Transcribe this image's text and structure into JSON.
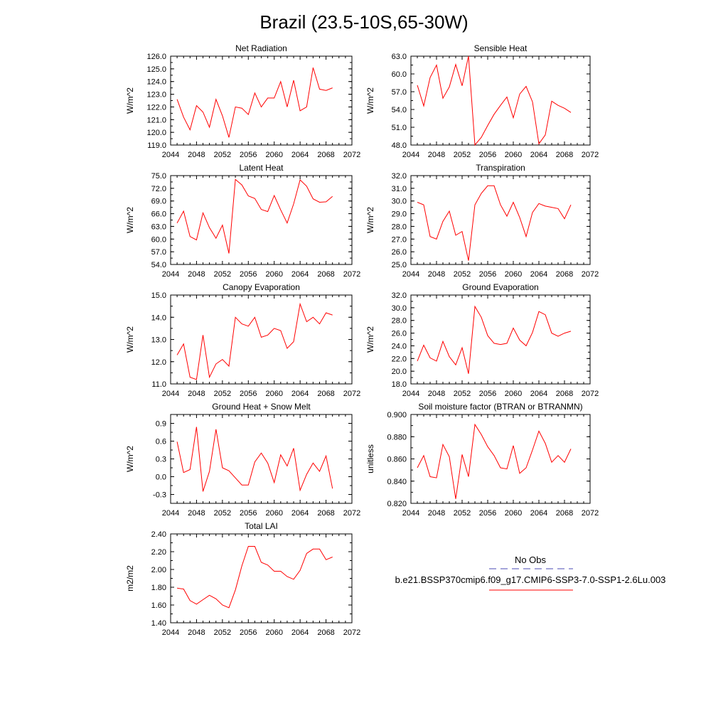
{
  "figure": {
    "title": "Brazil (23.5-10S,65-30W)",
    "line_color": "#ff0000",
    "obs_line_color": "#4b4bb4"
  },
  "legend": {
    "obs_label": "No Obs",
    "model_label": "b.e21.BSSP370cmip6.f09_g17.CMIP6-SSP3-7.0-SSP1-2.6Lu.003"
  },
  "chart_data": [
    {
      "type": "line",
      "title": "Net Radiation",
      "ylabel": "W/m^2",
      "xlim": [
        2044,
        2072
      ],
      "xticks": [
        "2044",
        "2048",
        "2052",
        "2056",
        "2060",
        "2064",
        "2068",
        "2072"
      ],
      "ylim": [
        119.0,
        126.0
      ],
      "yticks": [
        "119.0",
        "120.0",
        "121.0",
        "122.0",
        "123.0",
        "124.0",
        "125.0",
        "126.0"
      ],
      "x": [
        2045,
        2046,
        2047,
        2048,
        2049,
        2050,
        2051,
        2052,
        2053,
        2054,
        2055,
        2056,
        2057,
        2058,
        2059,
        2060,
        2061,
        2062,
        2063,
        2064,
        2065,
        2066,
        2067,
        2068,
        2069
      ],
      "series": [
        {
          "values": [
            122.6,
            121.2,
            120.2,
            122.1,
            121.6,
            120.4,
            122.6,
            121.3,
            119.6,
            122.0,
            121.9,
            121.4,
            123.1,
            122.0,
            122.7,
            122.7,
            124.0,
            122.0,
            124.1,
            121.7,
            122.0,
            125.1,
            123.4,
            123.3,
            123.5
          ]
        }
      ]
    },
    {
      "type": "line",
      "title": "Sensible Heat",
      "ylabel": "W/m^2",
      "xlim": [
        2044,
        2072
      ],
      "xticks": [
        "2044",
        "2048",
        "2052",
        "2056",
        "2060",
        "2064",
        "2068",
        "2072"
      ],
      "ylim": [
        48.0,
        63.0
      ],
      "yticks": [
        "48.0",
        "51.0",
        "54.0",
        "57.0",
        "60.0",
        "63.0"
      ],
      "x": [
        2045,
        2046,
        2047,
        2048,
        2049,
        2050,
        2051,
        2052,
        2053,
        2054,
        2055,
        2056,
        2057,
        2058,
        2059,
        2060,
        2061,
        2062,
        2063,
        2064,
        2065,
        2066,
        2067,
        2068,
        2069
      ],
      "series": [
        {
          "values": [
            58.1,
            54.6,
            59.4,
            61.5,
            55.9,
            57.8,
            61.6,
            58.0,
            63.0,
            48.0,
            49.3,
            51.3,
            53.2,
            54.7,
            56.1,
            52.6,
            56.6,
            57.9,
            55.3,
            48.2,
            49.7,
            55.4,
            54.7,
            54.2,
            53.5
          ]
        }
      ]
    },
    {
      "type": "line",
      "title": "Latent Heat",
      "ylabel": "W/m^2",
      "xlim": [
        2044,
        2072
      ],
      "xticks": [
        "2044",
        "2048",
        "2052",
        "2056",
        "2060",
        "2064",
        "2068",
        "2072"
      ],
      "ylim": [
        54.0,
        75.0
      ],
      "yticks": [
        "54.0",
        "57.0",
        "60.0",
        "63.0",
        "66.0",
        "69.0",
        "72.0",
        "75.0"
      ],
      "x": [
        2045,
        2046,
        2047,
        2048,
        2049,
        2050,
        2051,
        2052,
        2053,
        2054,
        2055,
        2056,
        2057,
        2058,
        2059,
        2060,
        2061,
        2062,
        2063,
        2064,
        2065,
        2066,
        2067,
        2068,
        2069
      ],
      "series": [
        {
          "values": [
            63.8,
            66.6,
            60.6,
            59.8,
            66.2,
            62.7,
            60.2,
            63.3,
            56.6,
            74.1,
            72.8,
            70.2,
            69.6,
            67.0,
            66.5,
            70.3,
            66.9,
            63.8,
            68.3,
            74.0,
            72.5,
            69.5,
            68.7,
            68.8,
            70.1
          ]
        }
      ]
    },
    {
      "type": "line",
      "title": "Transpiration",
      "ylabel": "W/m^2",
      "xlim": [
        2044,
        2072
      ],
      "xticks": [
        "2044",
        "2048",
        "2052",
        "2056",
        "2060",
        "2064",
        "2068",
        "2072"
      ],
      "ylim": [
        25.0,
        32.0
      ],
      "yticks": [
        "25.0",
        "26.0",
        "27.0",
        "28.0",
        "29.0",
        "30.0",
        "31.0",
        "32.0"
      ],
      "x": [
        2045,
        2046,
        2047,
        2048,
        2049,
        2050,
        2051,
        2052,
        2053,
        2054,
        2055,
        2056,
        2057,
        2058,
        2059,
        2060,
        2061,
        2062,
        2063,
        2064,
        2065,
        2066,
        2067,
        2068,
        2069
      ],
      "series": [
        {
          "values": [
            29.9,
            29.7,
            27.2,
            27.0,
            28.4,
            29.2,
            27.3,
            27.6,
            25.3,
            29.7,
            30.6,
            31.2,
            31.2,
            29.7,
            28.8,
            29.9,
            28.7,
            27.2,
            29.1,
            29.8,
            29.6,
            29.5,
            29.4,
            28.6,
            29.7
          ]
        }
      ]
    },
    {
      "type": "line",
      "title": "Canopy Evaporation",
      "ylabel": "W/m^2",
      "xlim": [
        2044,
        2072
      ],
      "xticks": [
        "2044",
        "2048",
        "2052",
        "2056",
        "2060",
        "2064",
        "2068",
        "2072"
      ],
      "ylim": [
        11.0,
        15.0
      ],
      "yticks": [
        "11.0",
        "12.0",
        "13.0",
        "14.0",
        "15.0"
      ],
      "x": [
        2045,
        2046,
        2047,
        2048,
        2049,
        2050,
        2051,
        2052,
        2053,
        2054,
        2055,
        2056,
        2057,
        2058,
        2059,
        2060,
        2061,
        2062,
        2063,
        2064,
        2065,
        2066,
        2067,
        2068,
        2069
      ],
      "series": [
        {
          "values": [
            12.3,
            12.8,
            11.3,
            11.2,
            13.2,
            11.3,
            11.9,
            12.1,
            11.8,
            14.0,
            13.7,
            13.6,
            14.0,
            13.1,
            13.2,
            13.5,
            13.4,
            12.6,
            12.9,
            14.6,
            13.8,
            14.0,
            13.7,
            14.2,
            14.1
          ]
        }
      ]
    },
    {
      "type": "line",
      "title": "Ground Evaporation",
      "ylabel": "W/m^2",
      "xlim": [
        2044,
        2072
      ],
      "xticks": [
        "2044",
        "2048",
        "2052",
        "2056",
        "2060",
        "2064",
        "2068",
        "2072"
      ],
      "ylim": [
        18.0,
        32.0
      ],
      "yticks": [
        "18.0",
        "20.0",
        "22.0",
        "24.0",
        "26.0",
        "28.0",
        "30.0",
        "32.0"
      ],
      "x": [
        2045,
        2046,
        2047,
        2048,
        2049,
        2050,
        2051,
        2052,
        2053,
        2054,
        2055,
        2056,
        2057,
        2058,
        2059,
        2060,
        2061,
        2062,
        2063,
        2064,
        2065,
        2066,
        2067,
        2068,
        2069
      ],
      "series": [
        {
          "values": [
            21.6,
            24.1,
            22.1,
            21.6,
            24.7,
            22.3,
            21.0,
            23.7,
            19.6,
            30.2,
            28.5,
            25.6,
            24.4,
            24.2,
            24.4,
            26.8,
            24.9,
            24.0,
            26.1,
            29.4,
            28.9,
            26.0,
            25.5,
            26.0,
            26.3
          ]
        }
      ]
    },
    {
      "type": "line",
      "title": "Ground Heat + Snow Melt",
      "ylabel": "W/m^2",
      "xlim": [
        2044,
        2072
      ],
      "xticks": [
        "2044",
        "2048",
        "2052",
        "2056",
        "2060",
        "2064",
        "2068",
        "2072"
      ],
      "ylim": [
        -0.45,
        1.05
      ],
      "yticks": [
        "-0.3",
        "0.0",
        "0.3",
        "0.6",
        "0.9"
      ],
      "x": [
        2045,
        2046,
        2047,
        2048,
        2049,
        2050,
        2051,
        2052,
        2053,
        2054,
        2055,
        2056,
        2057,
        2058,
        2059,
        2060,
        2061,
        2062,
        2063,
        2064,
        2065,
        2066,
        2067,
        2068,
        2069
      ],
      "series": [
        {
          "values": [
            0.59,
            0.07,
            0.12,
            0.84,
            -0.25,
            0.09,
            0.8,
            0.15,
            0.1,
            -0.02,
            -0.14,
            -0.14,
            0.25,
            0.4,
            0.23,
            -0.1,
            0.37,
            0.18,
            0.48,
            -0.23,
            0.04,
            0.23,
            0.09,
            0.35,
            -0.2
          ]
        }
      ]
    },
    {
      "type": "line",
      "title": "Soil moisture factor (BTRAN or BTRANMN)",
      "ylabel": "unitless",
      "xlim": [
        2044,
        2072
      ],
      "xticks": [
        "2044",
        "2048",
        "2052",
        "2056",
        "2060",
        "2064",
        "2068",
        "2072"
      ],
      "ylim": [
        0.82,
        0.9
      ],
      "yticks": [
        "0.820",
        "0.840",
        "0.860",
        "0.880",
        "0.900"
      ],
      "x": [
        2045,
        2046,
        2047,
        2048,
        2049,
        2050,
        2051,
        2052,
        2053,
        2054,
        2055,
        2056,
        2057,
        2058,
        2059,
        2060,
        2061,
        2062,
        2063,
        2064,
        2065,
        2066,
        2067,
        2068,
        2069
      ],
      "series": [
        {
          "values": [
            0.852,
            0.863,
            0.844,
            0.843,
            0.873,
            0.862,
            0.824,
            0.864,
            0.844,
            0.891,
            0.882,
            0.871,
            0.863,
            0.852,
            0.851,
            0.872,
            0.847,
            0.852,
            0.868,
            0.885,
            0.874,
            0.857,
            0.863,
            0.857,
            0.869
          ]
        }
      ]
    },
    {
      "type": "line",
      "title": "Total LAI",
      "ylabel": "m2/m2",
      "xlim": [
        2044,
        2072
      ],
      "xticks": [
        "2044",
        "2048",
        "2052",
        "2056",
        "2060",
        "2064",
        "2068",
        "2072"
      ],
      "ylim": [
        1.4,
        2.4
      ],
      "yticks": [
        "1.40",
        "1.60",
        "1.80",
        "2.00",
        "2.20",
        "2.40"
      ],
      "x": [
        2045,
        2046,
        2047,
        2048,
        2049,
        2050,
        2051,
        2052,
        2053,
        2054,
        2055,
        2056,
        2057,
        2058,
        2059,
        2060,
        2061,
        2062,
        2063,
        2064,
        2065,
        2066,
        2067,
        2068,
        2069
      ],
      "series": [
        {
          "values": [
            1.79,
            1.78,
            1.65,
            1.61,
            1.66,
            1.71,
            1.67,
            1.6,
            1.57,
            1.77,
            2.04,
            2.26,
            2.26,
            2.08,
            2.05,
            1.98,
            1.98,
            1.92,
            1.89,
            1.99,
            2.18,
            2.23,
            2.23,
            2.11,
            2.14
          ]
        }
      ]
    }
  ]
}
